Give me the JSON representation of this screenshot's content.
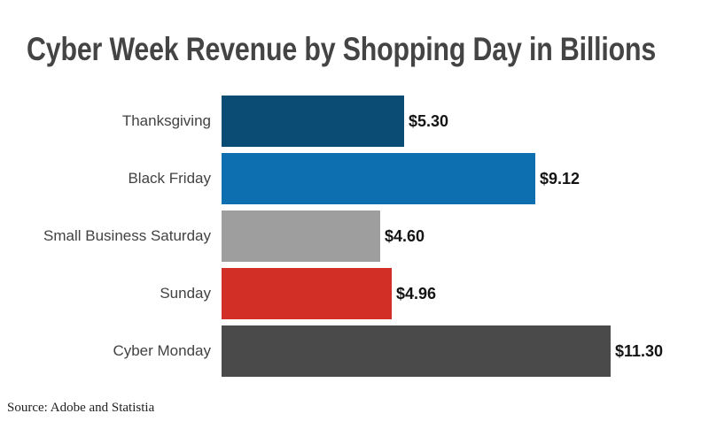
{
  "chart": {
    "title": "Cyber Week Revenue by Shopping Day in Billions"
  },
  "chart_data": {
    "type": "bar",
    "orientation": "horizontal",
    "title": "Cyber Week Revenue by Shopping Day in Billions",
    "categories": [
      "Thanksgiving",
      "Black Friday",
      "Small Business Saturday",
      "Sunday",
      "Cyber Monday"
    ],
    "values": [
      5.3,
      9.12,
      4.6,
      4.96,
      11.3
    ],
    "value_labels": [
      "$5.30",
      "$9.12",
      "$4.60",
      "$4.96",
      "$11.30"
    ],
    "bar_colors": [
      "#0B4C74",
      "#0D6EB0",
      "#9E9E9E",
      "#D23027",
      "#4A4A4A"
    ],
    "xlabel": "",
    "ylabel": "",
    "xlim": [
      0,
      11.3
    ],
    "grid": false,
    "legend": false
  },
  "footer": {
    "source": "Source: Adobe and Statistia"
  },
  "colors": {
    "background": "#FFFFFF",
    "title_text": "#444444",
    "category_text": "#424242",
    "value_text": "#141414"
  }
}
